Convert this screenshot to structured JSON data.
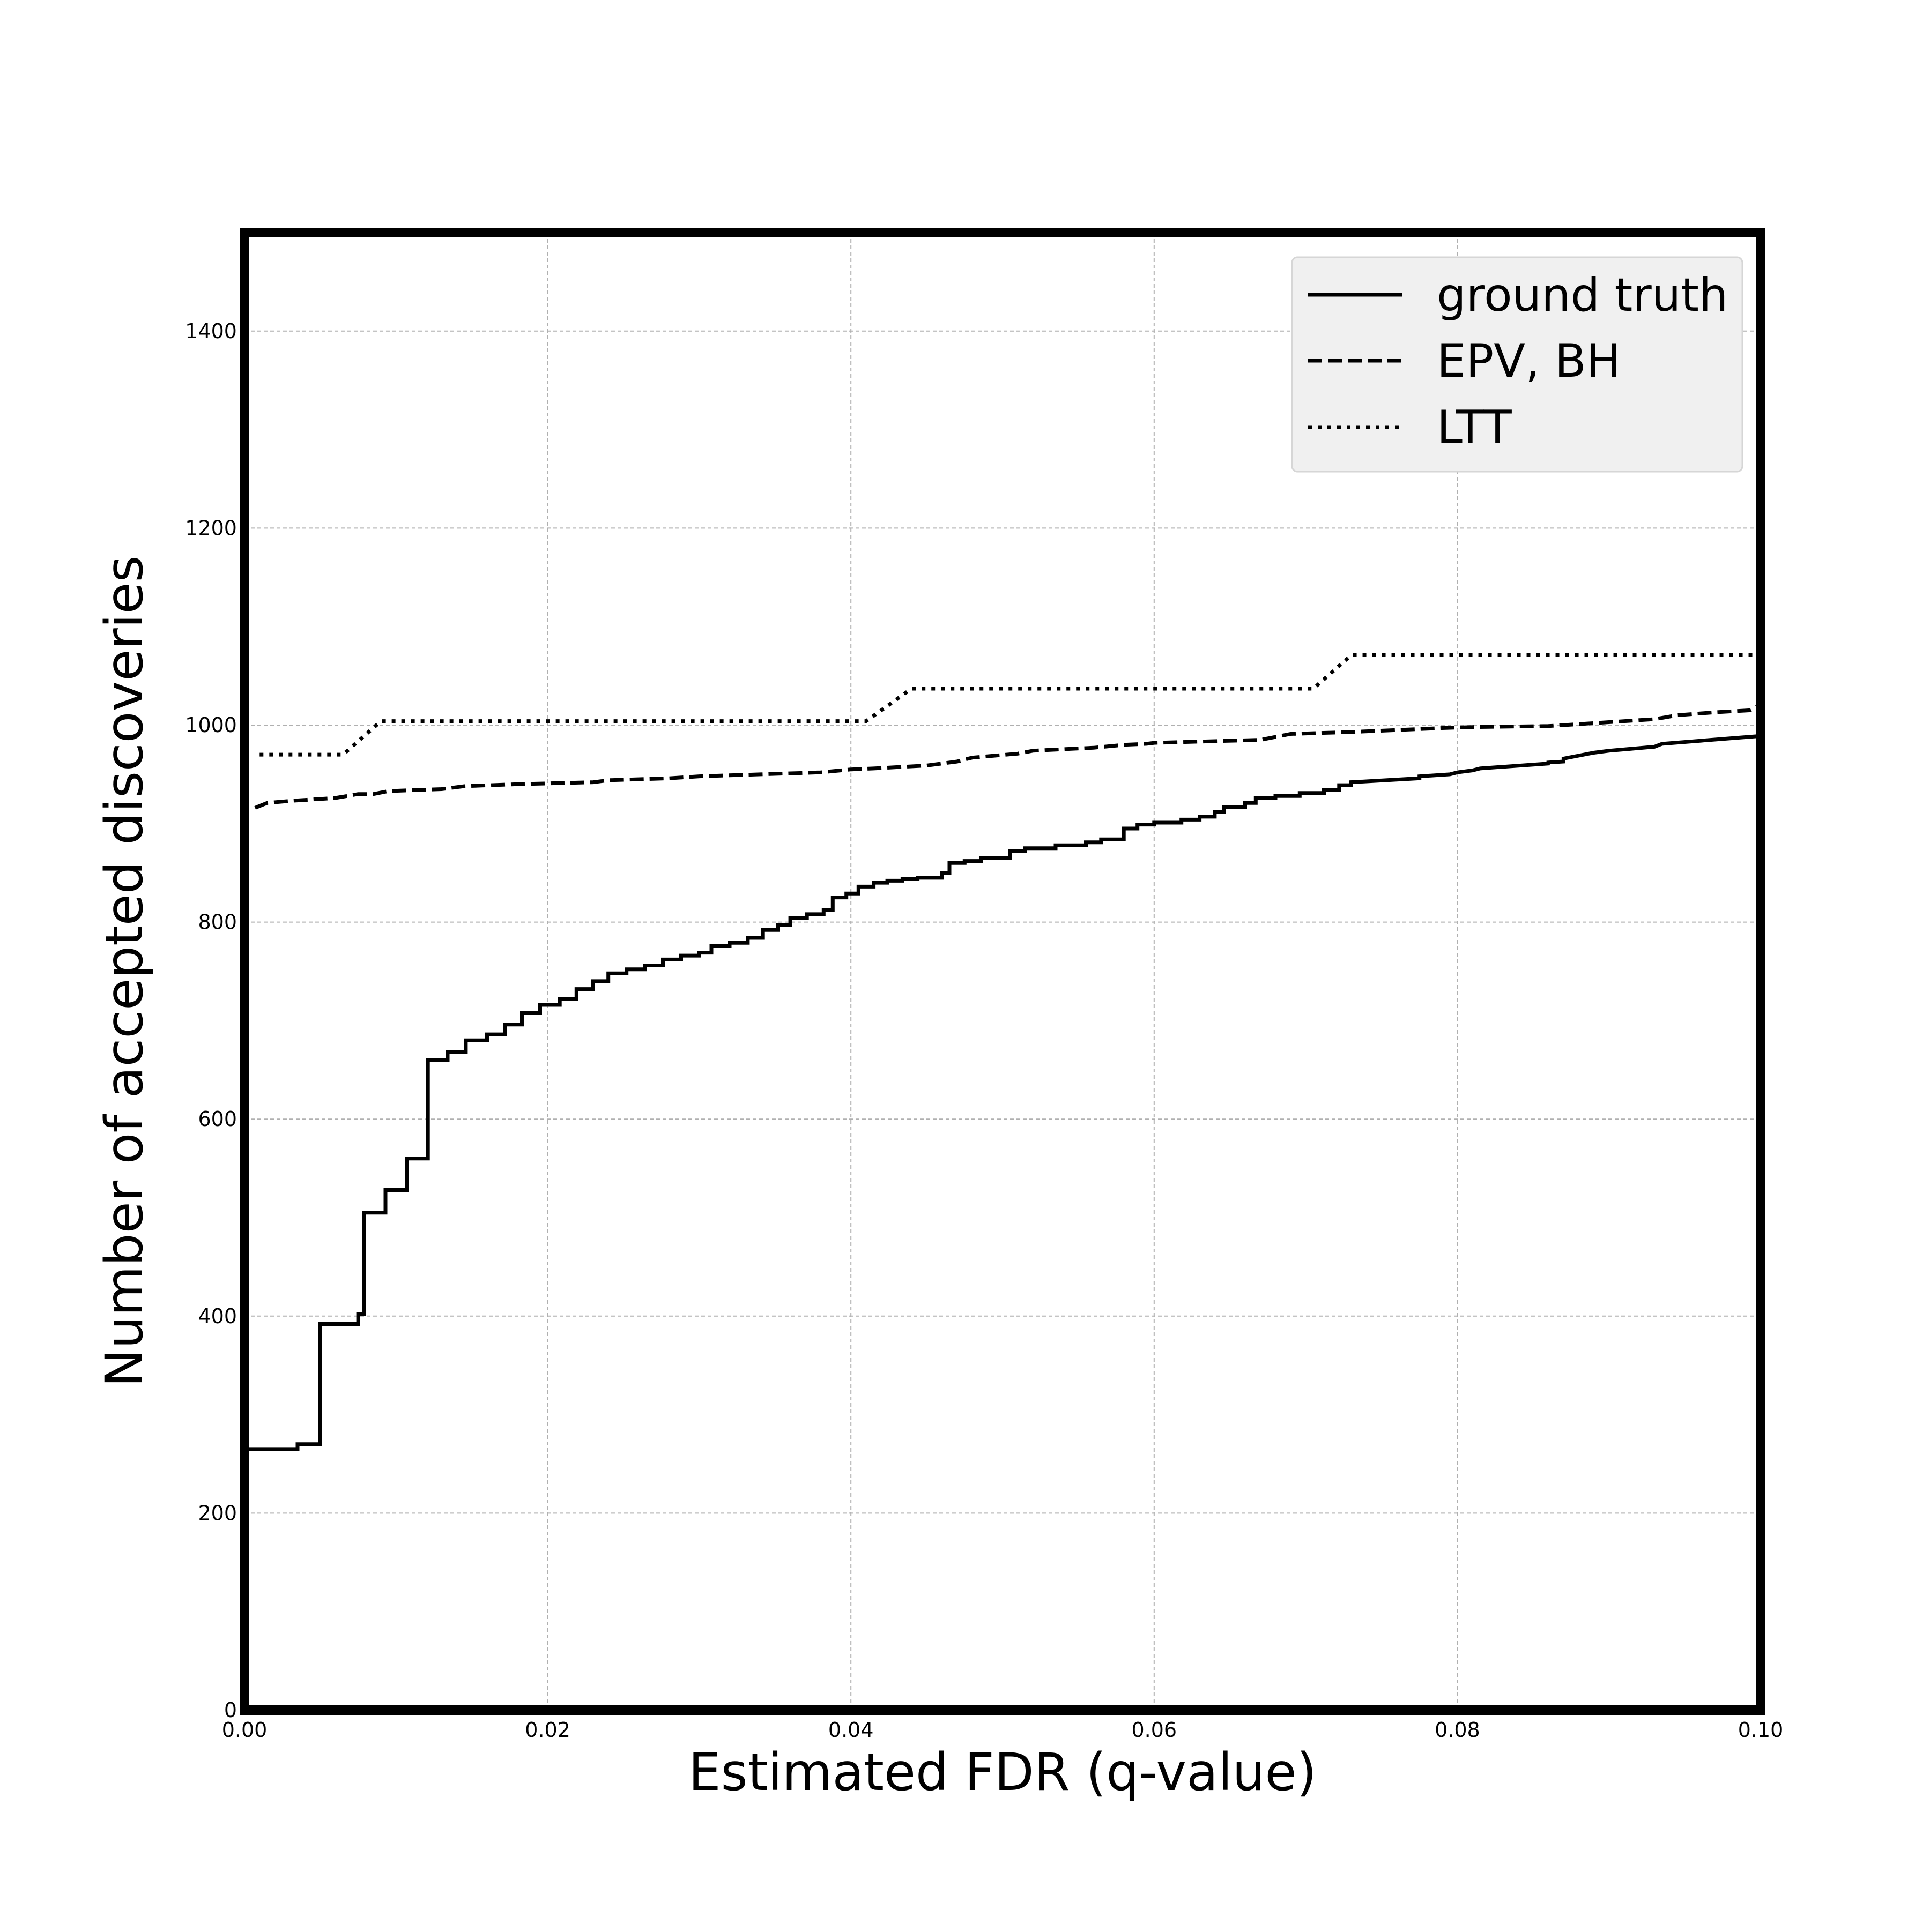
{
  "chart_data": {
    "type": "line",
    "xlabel": "Estimated FDR (q-value)",
    "ylabel": "Number of accepted discoveries",
    "xlim": [
      0.0,
      0.1
    ],
    "ylim": [
      0,
      1500
    ],
    "x_ticks": [
      "0.00",
      "0.02",
      "0.04",
      "0.06",
      "0.08",
      "0.10"
    ],
    "y_ticks": [
      "0",
      "200",
      "400",
      "600",
      "800",
      "1000",
      "1200",
      "1400"
    ],
    "grid": true,
    "legend_position": "top-right",
    "series": [
      {
        "name": "ground truth",
        "line_style": "solid",
        "color": "#000000",
        "step": true,
        "points": [
          [
            0.0,
            0
          ],
          [
            0.0,
            265
          ],
          [
            0.0035,
            265
          ],
          [
            0.0035,
            270
          ],
          [
            0.005,
            270
          ],
          [
            0.005,
            392
          ],
          [
            0.0075,
            392
          ],
          [
            0.0075,
            402
          ],
          [
            0.0079,
            402
          ],
          [
            0.0079,
            505
          ],
          [
            0.0093,
            505
          ],
          [
            0.0093,
            528
          ],
          [
            0.0107,
            528
          ],
          [
            0.0107,
            560
          ],
          [
            0.0121,
            560
          ],
          [
            0.0121,
            660
          ],
          [
            0.0134,
            660
          ],
          [
            0.0134,
            668
          ],
          [
            0.0146,
            668
          ],
          [
            0.0146,
            680
          ],
          [
            0.016,
            680
          ],
          [
            0.016,
            686
          ],
          [
            0.0172,
            686
          ],
          [
            0.0172,
            696
          ],
          [
            0.0183,
            696
          ],
          [
            0.0183,
            708
          ],
          [
            0.0195,
            708
          ],
          [
            0.0195,
            716
          ],
          [
            0.0208,
            716
          ],
          [
            0.0208,
            722
          ],
          [
            0.0219,
            722
          ],
          [
            0.0219,
            732
          ],
          [
            0.023,
            732
          ],
          [
            0.023,
            740
          ],
          [
            0.024,
            740
          ],
          [
            0.024,
            748
          ],
          [
            0.0252,
            748
          ],
          [
            0.0252,
            752
          ],
          [
            0.0264,
            752
          ],
          [
            0.0264,
            756
          ],
          [
            0.0276,
            756
          ],
          [
            0.0276,
            762
          ],
          [
            0.0288,
            762
          ],
          [
            0.0288,
            766
          ],
          [
            0.03,
            766
          ],
          [
            0.03,
            769
          ],
          [
            0.0308,
            769
          ],
          [
            0.0308,
            776
          ],
          [
            0.032,
            776
          ],
          [
            0.032,
            779
          ],
          [
            0.0332,
            779
          ],
          [
            0.0332,
            784
          ],
          [
            0.0342,
            784
          ],
          [
            0.0342,
            792
          ],
          [
            0.0352,
            792
          ],
          [
            0.0352,
            797
          ],
          [
            0.036,
            797
          ],
          [
            0.036,
            804
          ],
          [
            0.0371,
            804
          ],
          [
            0.0371,
            808
          ],
          [
            0.0382,
            808
          ],
          [
            0.0382,
            812
          ],
          [
            0.0388,
            812
          ],
          [
            0.0388,
            825
          ],
          [
            0.0397,
            825
          ],
          [
            0.0397,
            829
          ],
          [
            0.0405,
            829
          ],
          [
            0.0405,
            836
          ],
          [
            0.0415,
            836
          ],
          [
            0.0415,
            840
          ],
          [
            0.0424,
            840
          ],
          [
            0.0424,
            842
          ],
          [
            0.0434,
            842
          ],
          [
            0.0434,
            844
          ],
          [
            0.0444,
            844
          ],
          [
            0.0444,
            845
          ],
          [
            0.046,
            845
          ],
          [
            0.046,
            850
          ],
          [
            0.0465,
            850
          ],
          [
            0.0465,
            860
          ],
          [
            0.0475,
            860
          ],
          [
            0.0475,
            862
          ],
          [
            0.0486,
            862
          ],
          [
            0.0486,
            865
          ],
          [
            0.0505,
            865
          ],
          [
            0.0505,
            872
          ],
          [
            0.0515,
            872
          ],
          [
            0.0515,
            875
          ],
          [
            0.0535,
            875
          ],
          [
            0.0535,
            878
          ],
          [
            0.0555,
            878
          ],
          [
            0.0555,
            881
          ],
          [
            0.0565,
            881
          ],
          [
            0.0565,
            884
          ],
          [
            0.058,
            884
          ],
          [
            0.058,
            895
          ],
          [
            0.0589,
            895
          ],
          [
            0.0589,
            899
          ],
          [
            0.06,
            899
          ],
          [
            0.06,
            901
          ],
          [
            0.0618,
            901
          ],
          [
            0.0618,
            904
          ],
          [
            0.063,
            904
          ],
          [
            0.063,
            907
          ],
          [
            0.064,
            907
          ],
          [
            0.064,
            912
          ],
          [
            0.0646,
            912
          ],
          [
            0.0646,
            917
          ],
          [
            0.066,
            917
          ],
          [
            0.066,
            921
          ],
          [
            0.0667,
            921
          ],
          [
            0.0667,
            926
          ],
          [
            0.068,
            926
          ],
          [
            0.068,
            928
          ],
          [
            0.0696,
            928
          ],
          [
            0.0696,
            931
          ],
          [
            0.0712,
            931
          ],
          [
            0.0712,
            934
          ],
          [
            0.0722,
            934
          ],
          [
            0.0722,
            939
          ],
          [
            0.073,
            939
          ],
          [
            0.073,
            942
          ],
          [
            0.0775,
            946
          ],
          [
            0.0775,
            948
          ],
          [
            0.0795,
            950
          ],
          [
            0.08,
            952
          ],
          [
            0.081,
            954
          ],
          [
            0.0815,
            956
          ],
          [
            0.086,
            961
          ],
          [
            0.086,
            962
          ],
          [
            0.087,
            963
          ],
          [
            0.087,
            966
          ],
          [
            0.088,
            969
          ],
          [
            0.089,
            972
          ],
          [
            0.09,
            974
          ],
          [
            0.0915,
            976
          ],
          [
            0.093,
            978
          ],
          [
            0.0935,
            981
          ],
          [
            0.1,
            989
          ]
        ]
      },
      {
        "name": "EPV, BH",
        "line_style": "dashed",
        "color": "#000000",
        "step": false,
        "points": [
          [
            0.0007,
            916
          ],
          [
            0.0015,
            921
          ],
          [
            0.003,
            923
          ],
          [
            0.006,
            926
          ],
          [
            0.0075,
            930
          ],
          [
            0.0085,
            930
          ],
          [
            0.0095,
            933
          ],
          [
            0.013,
            935
          ],
          [
            0.0145,
            938
          ],
          [
            0.018,
            940
          ],
          [
            0.023,
            942
          ],
          [
            0.024,
            944
          ],
          [
            0.028,
            946
          ],
          [
            0.03,
            948
          ],
          [
            0.034,
            950
          ],
          [
            0.038,
            952
          ],
          [
            0.04,
            955
          ],
          [
            0.0415,
            956
          ],
          [
            0.045,
            959
          ],
          [
            0.047,
            963
          ],
          [
            0.048,
            967
          ],
          [
            0.051,
            971
          ],
          [
            0.052,
            974
          ],
          [
            0.056,
            977
          ],
          [
            0.058,
            980
          ],
          [
            0.0595,
            981
          ],
          [
            0.06,
            982
          ],
          [
            0.067,
            985
          ],
          [
            0.069,
            991
          ],
          [
            0.073,
            993
          ],
          [
            0.076,
            995
          ],
          [
            0.079,
            997
          ],
          [
            0.081,
            998
          ],
          [
            0.086,
            999
          ],
          [
            0.088,
            1001
          ],
          [
            0.09,
            1003
          ],
          [
            0.093,
            1006
          ],
          [
            0.0945,
            1010
          ],
          [
            0.097,
            1013
          ],
          [
            0.0993,
            1015
          ],
          [
            0.1,
            1021
          ]
        ]
      },
      {
        "name": "LTT",
        "line_style": "dotted",
        "color": "#000000",
        "step": false,
        "points": [
          [
            0.001,
            970
          ],
          [
            0.0065,
            970
          ],
          [
            0.009,
            1004
          ],
          [
            0.041,
            1004
          ],
          [
            0.044,
            1037
          ],
          [
            0.0705,
            1037
          ],
          [
            0.073,
            1071
          ],
          [
            0.1,
            1071
          ]
        ]
      }
    ]
  }
}
